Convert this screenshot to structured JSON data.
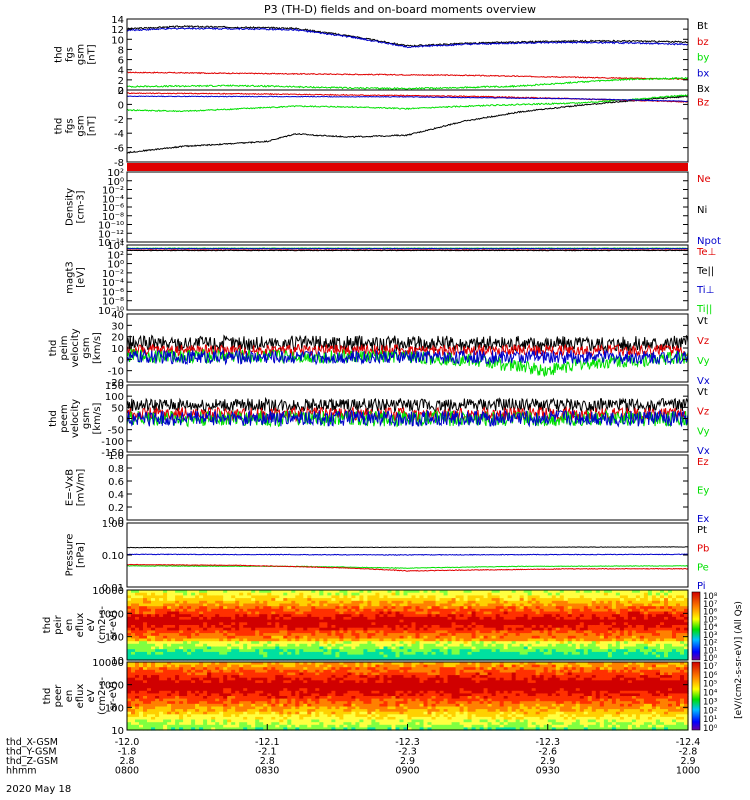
{
  "title": "P3 (TH-D) fields and on-board moments overview",
  "date_label": "2020 May 18",
  "orbit": {
    "labels": [
      "thd_X-GSM",
      "thd_Y-GSM",
      "thd_Z-GSM",
      "hhmm"
    ],
    "columns": [
      {
        "x": "-12.0",
        "y": "-1.8",
        "z": "2.8",
        "t": "0800"
      },
      {
        "x": "-12.1",
        "y": "-2.1",
        "z": "2.8",
        "t": "0830"
      },
      {
        "x": "-12.3",
        "y": "-2.3",
        "z": "2.9",
        "t": "0900"
      },
      {
        "x": "-12.3",
        "y": "-2.6",
        "z": "2.9",
        "t": "0930"
      },
      {
        "x": "-12.4",
        "y": "-2.8",
        "z": "2.9",
        "t": "1000"
      }
    ]
  },
  "spec_colorbar": {
    "label": "[eV/(cm2-s-sr-eV)] (All Qs)",
    "upper_ticks": [
      "10⁸",
      "10⁷",
      "10⁶",
      "10⁵",
      "10⁴",
      "10³",
      "10²",
      "10¹",
      "10⁰"
    ],
    "lower_ticks": [
      "10⁷",
      "10⁶",
      "10⁵",
      "10⁴",
      "10³",
      "10²",
      "10¹",
      "10⁰"
    ]
  },
  "colors": {
    "black": "#000000",
    "red": "#e00000",
    "green": "#00e000",
    "blue": "#0000cc"
  },
  "chart_data": [
    {
      "type": "line",
      "ylabel": [
        "thd",
        "fgs",
        "gsm",
        "[nT]"
      ],
      "yticks": [
        "14",
        "12",
        "10",
        "8",
        "6",
        "4",
        "2",
        "0"
      ],
      "ylim": [
        0,
        14.5
      ],
      "legend": [
        {
          "name": "Bt",
          "color": "black"
        },
        {
          "name": "bz",
          "color": "red"
        },
        {
          "name": "by",
          "color": "green"
        },
        {
          "name": "bx",
          "color": "blue"
        },
        {
          "name": "Bx",
          "color": "black"
        }
      ],
      "series": [
        {
          "name": "Bt",
          "color": "black",
          "x": [
            0,
            0.1,
            0.2,
            0.3,
            0.4,
            0.5,
            0.6,
            0.7,
            0.8,
            0.9,
            1
          ],
          "y": [
            12.5,
            13,
            12.8,
            12.6,
            11,
            9,
            9.5,
            9.8,
            10,
            10,
            9.8
          ],
          "noise": 0.15
        },
        {
          "name": "bx",
          "color": "blue",
          "x": [
            0,
            0.1,
            0.2,
            0.3,
            0.4,
            0.5,
            0.6,
            0.7,
            0.8,
            0.9,
            1
          ],
          "y": [
            12.2,
            12.6,
            12.5,
            12.3,
            10.8,
            8.8,
            9.3,
            9.6,
            9.7,
            9.6,
            9.3
          ],
          "noise": 0.15
        },
        {
          "name": "bz",
          "color": "red",
          "x": [
            0,
            0.2,
            0.4,
            0.6,
            0.8,
            1
          ],
          "y": [
            3.6,
            3.4,
            3.2,
            3.0,
            2.6,
            2.2
          ],
          "noise": 0.1
        },
        {
          "name": "by",
          "color": "green",
          "x": [
            0,
            0.2,
            0.4,
            0.5,
            0.6,
            0.7,
            0.8,
            0.9,
            1
          ],
          "y": [
            0.7,
            0.9,
            0.4,
            0.3,
            0.5,
            0.8,
            1.6,
            2.2,
            2.4
          ],
          "noise": 0.15
        }
      ]
    },
    {
      "type": "line",
      "ylabel": [
        "thd",
        "fgs",
        "gsm",
        "[nT]"
      ],
      "yticks": [
        "2",
        "0",
        "-2",
        "-4",
        "-6",
        "-8"
      ],
      "ylim": [
        -9.5,
        2
      ],
      "legend": [
        {
          "name": "Bz",
          "color": "red"
        }
      ],
      "series": [
        {
          "name": "bx",
          "color": "black",
          "x": [
            0,
            0.1,
            0.2,
            0.25,
            0.3,
            0.35,
            0.4,
            0.5,
            0.6,
            0.7,
            0.8,
            0.9,
            1
          ],
          "y": [
            -8,
            -7,
            -6.5,
            -6.2,
            -5,
            -5.3,
            -5.5,
            -5.2,
            -3,
            -1.5,
            -0.5,
            0.3,
            1.0
          ],
          "noise": 0.1
        },
        {
          "name": "by",
          "color": "green",
          "x": [
            0,
            0.1,
            0.2,
            0.3,
            0.4,
            0.5,
            0.6,
            0.7,
            0.8,
            0.9,
            1
          ],
          "y": [
            -1.2,
            -1.4,
            -1.0,
            -0.6,
            -0.7,
            -1.0,
            -0.6,
            -0.3,
            -0.1,
            0.5,
            1.2
          ],
          "noise": 0.1
        },
        {
          "name": "Bz",
          "color": "red",
          "x": [
            0,
            0.2,
            0.4,
            0.6,
            0.8,
            1
          ],
          "y": [
            1.5,
            1.4,
            1.2,
            1.0,
            0.6,
            0.1
          ],
          "noise": 0.08
        },
        {
          "name": "bz",
          "color": "blue",
          "x": [
            0,
            0.5,
            0.8,
            1
          ],
          "y": [
            1.0,
            0.9,
            0.6,
            0.2
          ],
          "noise": 0.05
        }
      ]
    },
    {
      "type": "line",
      "ylabel": [
        "Density",
        "[cm-3]"
      ],
      "yticks": [
        "10²",
        "10⁰",
        "10⁻²",
        "10⁻⁴",
        "10⁻⁶",
        "10⁻⁸",
        "10⁻¹⁰",
        "10⁻¹²",
        "10⁻¹⁴"
      ],
      "ylim": [
        -14,
        2
      ],
      "legend": [
        {
          "name": "Ne",
          "color": "red"
        },
        {
          "name": "Ni",
          "color": "black"
        },
        {
          "name": "Npot",
          "color": "blue"
        }
      ],
      "series": []
    },
    {
      "type": "line",
      "ylabel": [
        "magt3",
        "[eV]"
      ],
      "yticks": [
        "10⁴",
        "10²",
        "10⁰",
        "10⁻²",
        "10⁻⁴",
        "10⁻⁶",
        "10⁻⁸",
        "10⁻¹⁰"
      ],
      "ylim": [
        -10,
        4.2
      ],
      "legend": [
        {
          "name": "Te⊥",
          "color": "red"
        },
        {
          "name": "Te||",
          "color": "black"
        },
        {
          "name": "Ti⊥",
          "color": "blue"
        },
        {
          "name": "Ti||",
          "color": "green"
        }
      ],
      "series": [
        {
          "name": "Ti||",
          "color": "green",
          "x": [
            0,
            1
          ],
          "y": [
            3.5,
            3.5
          ],
          "noise": 0.05
        },
        {
          "name": "Ti⊥",
          "color": "blue",
          "x": [
            0,
            1
          ],
          "y": [
            3.4,
            3.4
          ],
          "noise": 0.05
        },
        {
          "name": "Te⊥",
          "color": "red",
          "x": [
            0,
            1
          ],
          "y": [
            3.1,
            3.1
          ],
          "noise": 0.05
        },
        {
          "name": "Te||",
          "color": "black",
          "x": [
            0,
            1
          ],
          "y": [
            3.0,
            3.0
          ],
          "noise": 0.05
        }
      ]
    },
    {
      "type": "line",
      "ylabel": [
        "thd",
        "peim",
        "velocity",
        "gsm",
        "[km/s]"
      ],
      "yticks": [
        "40",
        "30",
        "20",
        "10",
        "0",
        "-10",
        "-20"
      ],
      "ylim": [
        -20,
        40
      ],
      "legend": [
        {
          "name": "Vt",
          "color": "black"
        },
        {
          "name": "Vz",
          "color": "red"
        },
        {
          "name": "Vy",
          "color": "green"
        },
        {
          "name": "Vx",
          "color": "blue"
        }
      ],
      "series": [
        {
          "name": "Vt",
          "color": "black",
          "x": [
            0,
            1
          ],
          "y": [
            14,
            14
          ],
          "noise": 7
        },
        {
          "name": "Vz",
          "color": "red",
          "x": [
            0,
            1
          ],
          "y": [
            8,
            8
          ],
          "noise": 5
        },
        {
          "name": "Vy",
          "color": "green",
          "x": [
            0,
            0.5,
            0.6,
            0.7,
            0.75,
            0.8,
            1
          ],
          "y": [
            3,
            2,
            0,
            -6,
            -10,
            -4,
            2
          ],
          "noise": 6
        },
        {
          "name": "Vx",
          "color": "blue",
          "x": [
            0,
            1
          ],
          "y": [
            2,
            2
          ],
          "noise": 6
        }
      ]
    },
    {
      "type": "line",
      "ylabel": [
        "thd",
        "peem",
        "velocity",
        "gsm",
        "[km/s]"
      ],
      "yticks": [
        "150",
        "100",
        "50",
        "0",
        "-50",
        "-100",
        "-150"
      ],
      "ylim": [
        -150,
        150
      ],
      "legend": [
        {
          "name": "Vt",
          "color": "black"
        },
        {
          "name": "Vz",
          "color": "red"
        },
        {
          "name": "Vy",
          "color": "green"
        },
        {
          "name": "Vx",
          "color": "blue"
        }
      ],
      "series": [
        {
          "name": "Vt",
          "color": "black",
          "x": [
            0,
            1
          ],
          "y": [
            60,
            60
          ],
          "noise": 30
        },
        {
          "name": "Vz",
          "color": "red",
          "x": [
            0,
            1
          ],
          "y": [
            20,
            20
          ],
          "noise": 30
        },
        {
          "name": "Vy",
          "color": "green",
          "x": [
            0,
            1
          ],
          "y": [
            0,
            0
          ],
          "noise": 35
        },
        {
          "name": "Vx",
          "color": "blue",
          "x": [
            0,
            1
          ],
          "y": [
            0,
            0
          ],
          "noise": 35
        }
      ]
    },
    {
      "type": "line",
      "ylabel": [
        "E=-VxB",
        "[mV/m]"
      ],
      "yticks": [
        "1.0",
        "0.8",
        "0.6",
        "0.4",
        "0.2",
        "0.0"
      ],
      "ylim": [
        0,
        1
      ],
      "legend": [
        {
          "name": "Ez",
          "color": "red"
        },
        {
          "name": "Ey",
          "color": "green"
        },
        {
          "name": "Ex",
          "color": "blue"
        }
      ],
      "series": []
    },
    {
      "type": "line",
      "log": true,
      "ylabel": [
        "Pressure",
        "[nPa]"
      ],
      "yticks": [
        "1.00",
        "0.10",
        "0.01"
      ],
      "ylim": [
        0.01,
        1.3
      ],
      "legend": [
        {
          "name": "Pt",
          "color": "black"
        },
        {
          "name": "Pb",
          "color": "red"
        },
        {
          "name": "Pe",
          "color": "green"
        },
        {
          "name": "Pi",
          "color": "blue"
        }
      ],
      "series": [
        {
          "name": "Pt",
          "color": "black",
          "x": [
            0,
            1
          ],
          "y": [
            0.2,
            0.21
          ],
          "noise": 0.003
        },
        {
          "name": "Pi",
          "color": "blue",
          "x": [
            0,
            0.5,
            1
          ],
          "y": [
            0.12,
            0.115,
            0.12
          ],
          "noise": 0.003
        },
        {
          "name": "Pe",
          "color": "green",
          "x": [
            0,
            0.3,
            0.5,
            0.7,
            1
          ],
          "y": [
            0.05,
            0.048,
            0.042,
            0.048,
            0.05
          ],
          "noise": 0.001
        },
        {
          "name": "Pb",
          "color": "red",
          "x": [
            0,
            0.2,
            0.4,
            0.5,
            0.6,
            0.8,
            1
          ],
          "y": [
            0.055,
            0.052,
            0.042,
            0.034,
            0.036,
            0.04,
            0.04
          ],
          "noise": 0.001
        }
      ]
    },
    {
      "type": "heatmap",
      "ylabel": [
        "thd",
        "peir",
        "en",
        "eflux",
        "eV",
        "(cm2-s-",
        "sr-eV)"
      ],
      "yticks": [
        "10000",
        "1000",
        "100",
        "10"
      ],
      "ylim": [
        5,
        20000
      ]
    },
    {
      "type": "heatmap",
      "ylabel": [
        "thd",
        "peer",
        "en",
        "eflux",
        "eV",
        "(cm2-s-",
        "sr-eV)"
      ],
      "yticks": [
        "10000",
        "1000",
        "100",
        "10"
      ],
      "ylim": [
        5,
        20000
      ]
    }
  ]
}
